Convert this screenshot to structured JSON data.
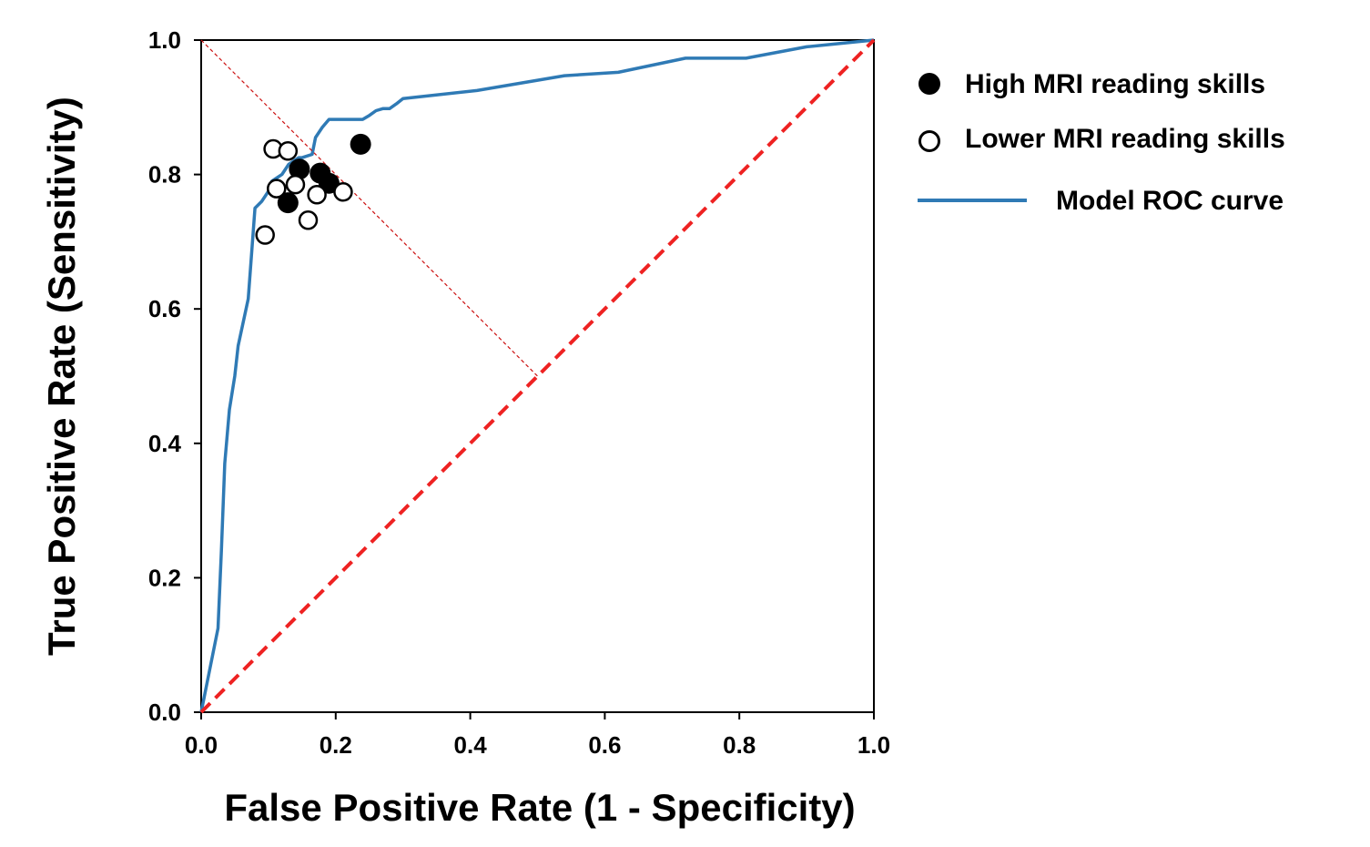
{
  "chart_data": {
    "type": "line",
    "title": "",
    "xlabel": "False Positive Rate (1 - Specificity)",
    "ylabel": "True Positive Rate (Sensitivity)",
    "xlim": [
      0.0,
      1.0
    ],
    "ylim": [
      0.0,
      1.0
    ],
    "xticks": [
      "0.0",
      "0.2",
      "0.4",
      "0.6",
      "0.8",
      "1.0"
    ],
    "yticks": [
      "0.0",
      "0.2",
      "0.4",
      "0.6",
      "0.8",
      "1.0"
    ],
    "grid": false,
    "legend_position": "right",
    "legend": {
      "high": "High MRI reading skills",
      "lower": "Lower MRI reading skills",
      "roc": "Model ROC curve"
    },
    "colors": {
      "roc": "#2f7ab5",
      "chance": "#ee2222",
      "marker": "#000000"
    },
    "series": [
      {
        "name": "Model ROC curve",
        "type": "line",
        "x": [
          0.0,
          0.025,
          0.03,
          0.035,
          0.042,
          0.05,
          0.055,
          0.07,
          0.08,
          0.09,
          0.1,
          0.105,
          0.12,
          0.13,
          0.145,
          0.15,
          0.165,
          0.17,
          0.18,
          0.19,
          0.2,
          0.22,
          0.24,
          0.25,
          0.26,
          0.27,
          0.28,
          0.29,
          0.3,
          0.41,
          0.54,
          0.62,
          0.72,
          0.81,
          0.9,
          1.0
        ],
        "y": [
          0.0,
          0.125,
          0.24,
          0.37,
          0.45,
          0.5,
          0.545,
          0.615,
          0.75,
          0.76,
          0.775,
          0.79,
          0.8,
          0.815,
          0.825,
          0.825,
          0.83,
          0.855,
          0.87,
          0.882,
          0.882,
          0.882,
          0.882,
          0.888,
          0.895,
          0.898,
          0.898,
          0.905,
          0.913,
          0.925,
          0.947,
          0.952,
          0.973,
          0.973,
          0.99,
          1.0
        ]
      },
      {
        "name": "Chance line",
        "type": "line",
        "style": "dashed",
        "x": [
          0.0,
          1.0
        ],
        "y": [
          0.0,
          1.0
        ]
      },
      {
        "name": "Youden guide",
        "type": "line",
        "style": "dotted",
        "x": [
          0.0,
          0.5
        ],
        "y": [
          1.0,
          0.5
        ]
      },
      {
        "name": "High MRI reading skills",
        "type": "scatter",
        "marker": "filled-circle",
        "x": [
          0.237,
          0.146,
          0.177,
          0.19,
          0.129
        ],
        "y": [
          0.845,
          0.808,
          0.802,
          0.787,
          0.758
        ]
      },
      {
        "name": "Lower MRI reading skills",
        "type": "scatter",
        "marker": "open-circle",
        "x": [
          0.107,
          0.129,
          0.112,
          0.14,
          0.172,
          0.211,
          0.159,
          0.095
        ],
        "y": [
          0.838,
          0.835,
          0.779,
          0.785,
          0.77,
          0.774,
          0.732,
          0.71
        ]
      }
    ]
  }
}
